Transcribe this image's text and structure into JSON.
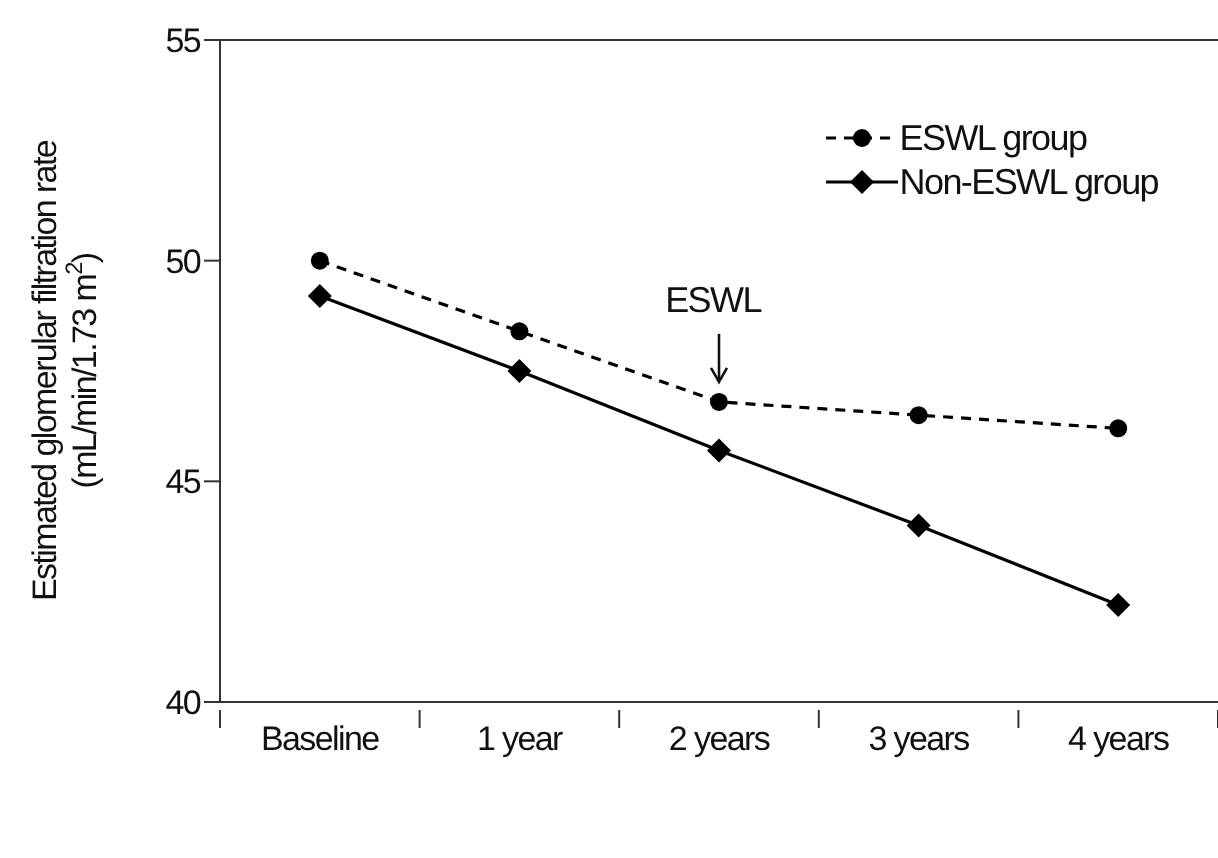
{
  "chart_data": {
    "type": "line",
    "ylabel": "Estimated glomerular filtration rate\n(mL/min/1.73 m$^{2}$)",
    "categories": [
      "Baseline",
      "1 year",
      "2 years",
      "3 years",
      "4 years"
    ],
    "series": [
      {
        "name": "ESWL group",
        "color": "#000000",
        "marker": "circle",
        "line_style": "dashed",
        "values": [
          50.0,
          48.4,
          46.8,
          46.5,
          46.2
        ]
      },
      {
        "name": "Non-ESWL group",
        "color": "#000000",
        "marker": "diamond",
        "line_style": "solid",
        "values": [
          49.2,
          47.5,
          45.7,
          44.0,
          42.2
        ]
      }
    ],
    "ylim": [
      40,
      55
    ],
    "yticks": [
      40,
      45,
      50,
      55
    ],
    "grid": false,
    "legend": "top right",
    "annotations": [
      {
        "text": "ESWL",
        "x": "2 years",
        "y": 46.8
      }
    ]
  }
}
